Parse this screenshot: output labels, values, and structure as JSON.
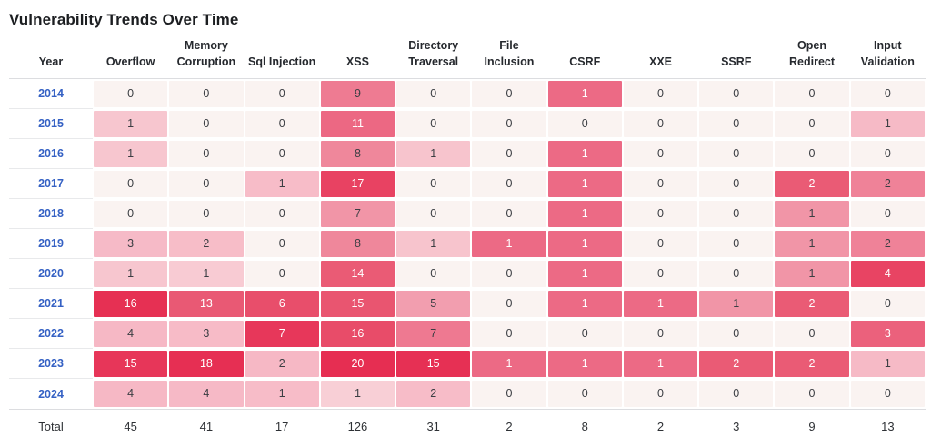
{
  "title": "Vulnerability Trends Over Time",
  "table": {
    "year_header": "Year",
    "column_headers_display": [
      "Overflow",
      "Memory\nCorruption",
      "Sql Injection",
      "XSS",
      "Directory\nTraversal",
      "File\nInclusion",
      "CSRF",
      "XXE",
      "SSRF",
      "Open\nRedirect",
      "Input\nValidation"
    ],
    "total_label": "Total"
  },
  "chart_data": {
    "type": "heatmap",
    "title": "Vulnerability Trends Over Time",
    "x_categories": [
      "Overflow",
      "Memory Corruption",
      "Sql Injection",
      "XSS",
      "Directory Traversal",
      "File Inclusion",
      "CSRF",
      "XXE",
      "SSRF",
      "Open Redirect",
      "Input Validation"
    ],
    "y_categories": [
      "2014",
      "2015",
      "2016",
      "2017",
      "2018",
      "2019",
      "2020",
      "2021",
      "2022",
      "2023",
      "2024"
    ],
    "values": [
      [
        0,
        0,
        0,
        9,
        0,
        0,
        1,
        0,
        0,
        0,
        0
      ],
      [
        1,
        0,
        0,
        11,
        0,
        0,
        0,
        0,
        0,
        0,
        1
      ],
      [
        1,
        0,
        0,
        8,
        1,
        0,
        1,
        0,
        0,
        0,
        0
      ],
      [
        0,
        0,
        1,
        17,
        0,
        0,
        1,
        0,
        0,
        2,
        2
      ],
      [
        0,
        0,
        0,
        7,
        0,
        0,
        1,
        0,
        0,
        1,
        0
      ],
      [
        3,
        2,
        0,
        8,
        1,
        1,
        1,
        0,
        0,
        1,
        2
      ],
      [
        1,
        1,
        0,
        14,
        0,
        0,
        1,
        0,
        0,
        1,
        4
      ],
      [
        16,
        13,
        6,
        15,
        5,
        0,
        1,
        1,
        1,
        2,
        0
      ],
      [
        4,
        3,
        7,
        16,
        7,
        0,
        0,
        0,
        0,
        0,
        3
      ],
      [
        15,
        18,
        2,
        20,
        15,
        1,
        1,
        1,
        2,
        2,
        1
      ],
      [
        4,
        4,
        1,
        1,
        2,
        0,
        0,
        0,
        0,
        0,
        0
      ]
    ],
    "totals_label": "Total",
    "totals": [
      45,
      41,
      17,
      126,
      31,
      2,
      8,
      2,
      3,
      9,
      13
    ],
    "legend": "none",
    "color_scale": {
      "normalization": "per-column",
      "zero_color": "#faf3f1",
      "max_color": "#e5294e"
    }
  },
  "colors": {
    "link_blue": "#3561c4",
    "title_text": "#1c1e21",
    "cell_dark_text": "#3b3e43",
    "cell_light_text": "#ffffff",
    "separator": "#dcdde0"
  }
}
